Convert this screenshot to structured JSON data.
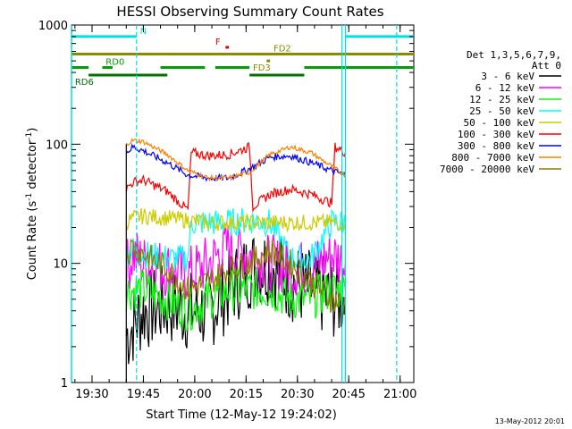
{
  "chart_data": {
    "type": "line",
    "title": "HESSI Observing Summary Count Rates",
    "xlabel": "Start Time (12-May-12 19:24:02)",
    "ylabel": "Count Rate (s",
    "ylabel_sup": "-1",
    "ylabel_mid": " detector",
    "ylabel_end": ")",
    "ylog": true,
    "ylim": [
      1,
      1000
    ],
    "xlim": [
      "19:24",
      "21:04"
    ],
    "x_ticks": [
      "19:30",
      "19:45",
      "20:00",
      "20:15",
      "20:30",
      "20:45",
      "21:00"
    ],
    "y_ticks": [
      "1",
      "10",
      "100",
      "1000"
    ],
    "legend_header_1": "Det 1,3,5,6,7,9,",
    "legend_header_2": "Att 0",
    "timestamp": "13-May-2012 20:01",
    "series": [
      {
        "name": "3 - 6 keV",
        "color": "#000000",
        "x": [
          "19:40",
          "19:42",
          "19:45",
          "19:52",
          "19:58",
          "20:04",
          "20:10",
          "20:16",
          "20:22",
          "20:28",
          "20:34",
          "20:40",
          "20:44"
        ],
        "values": [
          2.5,
          3,
          4,
          4.5,
          4,
          4,
          6,
          9,
          10,
          7,
          6,
          5,
          5
        ]
      },
      {
        "name": "6 - 12 keV",
        "color": "#ff00ff",
        "x": [
          "19:40",
          "19:42",
          "19:45",
          "19:52",
          "19:58",
          "20:04",
          "20:10",
          "20:16",
          "20:22",
          "20:28",
          "20:34",
          "20:40",
          "20:44"
        ],
        "values": [
          9,
          12,
          10,
          9,
          8,
          10,
          14,
          12,
          10,
          9,
          9,
          12,
          10
        ]
      },
      {
        "name": "12 - 25 keV",
        "color": "#00ff00",
        "x": [
          "19:40",
          "19:42",
          "19:45",
          "19:52",
          "19:58",
          "20:04",
          "20:10",
          "20:16",
          "20:22",
          "20:28",
          "20:34",
          "20:40",
          "20:44"
        ],
        "values": [
          6,
          6,
          6,
          5,
          4,
          5,
          6,
          6,
          6,
          5,
          5,
          6,
          6
        ]
      },
      {
        "name": "25 - 50 keV",
        "color": "#00ffff",
        "x": [
          "19:40",
          "19:42",
          "19:45",
          "19:52",
          "19:58",
          "19:59",
          "20:04",
          "20:10",
          "20:16",
          "20:22",
          "20:28",
          "20:34",
          "20:40",
          "20:44"
        ],
        "values": [
          12,
          13,
          12,
          11,
          11,
          22,
          22,
          22,
          23,
          22,
          11,
          11,
          22,
          22
        ]
      },
      {
        "name": "50 - 100 keV",
        "color": "#cccc00",
        "x": [
          "19:40",
          "19:42",
          "19:45",
          "19:52",
          "19:58",
          "20:04",
          "20:10",
          "20:16",
          "20:22",
          "20:28",
          "20:34",
          "20:40",
          "20:44"
        ],
        "values": [
          22,
          24,
          25,
          24,
          23,
          22,
          22,
          22,
          22,
          22,
          22,
          22,
          22
        ]
      },
      {
        "name": "100 - 300 keV",
        "color": "#ff0000",
        "x": [
          "19:40",
          "19:42",
          "19:45",
          "19:52",
          "19:58",
          "19:59",
          "20:04",
          "20:10",
          "20:16",
          "20:17",
          "20:22",
          "20:28",
          "20:34",
          "20:40",
          "20:41",
          "20:44"
        ],
        "values": [
          42,
          48,
          50,
          40,
          28,
          85,
          80,
          82,
          95,
          30,
          38,
          42,
          38,
          32,
          95,
          85
        ]
      },
      {
        "name": "300 - 800 keV",
        "color": "#0000ff",
        "x": [
          "19:40",
          "19:42",
          "19:45",
          "19:52",
          "19:58",
          "20:04",
          "20:10",
          "20:16",
          "20:22",
          "20:28",
          "20:34",
          "20:40",
          "20:44"
        ],
        "values": [
          85,
          95,
          88,
          70,
          55,
          52,
          52,
          62,
          78,
          80,
          70,
          60,
          55
        ]
      },
      {
        "name": "800 - 7000 keV",
        "color": "#ff8000",
        "x": [
          "19:40",
          "19:42",
          "19:45",
          "19:52",
          "19:58",
          "20:04",
          "20:10",
          "20:16",
          "20:22",
          "20:28",
          "20:34",
          "20:40",
          "20:44"
        ],
        "values": [
          100,
          108,
          105,
          82,
          60,
          52,
          52,
          58,
          82,
          95,
          85,
          65,
          55
        ]
      },
      {
        "name": "7000 - 20000 keV",
        "color": "#8b7a00",
        "x": [
          "19:40",
          "19:42",
          "19:45",
          "19:52",
          "19:58",
          "20:04",
          "20:10",
          "20:16",
          "20:22",
          "20:28",
          "20:34",
          "20:40",
          "20:44"
        ],
        "values": [
          12,
          14,
          12,
          9,
          6,
          7,
          9,
          10,
          13,
          10,
          7,
          5,
          4.5
        ]
      }
    ],
    "flag_bars": [
      {
        "label": "N",
        "color": "#00e0e0",
        "level": 800,
        "segments": [
          [
            "19:24",
            "19:43"
          ],
          [
            "20:44",
            "21:04"
          ]
        ]
      },
      {
        "label": "F",
        "color": "#e00000",
        "level": 650,
        "segments": [
          [
            "20:09",
            "20:10"
          ]
        ]
      },
      {
        "label": "FD2",
        "color": "#8b8b00",
        "level": 570,
        "segments": [
          [
            "19:24",
            "21:04"
          ]
        ]
      },
      {
        "label": "FD3",
        "color": "#8b8b00",
        "level": 500,
        "segments": [
          [
            "20:21",
            "20:22"
          ]
        ]
      },
      {
        "label": "RD0",
        "color": "#00a000",
        "level": 440,
        "segments": [
          [
            "19:24",
            "19:29"
          ],
          [
            "19:33",
            "19:36"
          ],
          [
            "19:50",
            "20:03"
          ],
          [
            "20:06",
            "20:16"
          ],
          [
            "20:32",
            "21:04"
          ]
        ]
      },
      {
        "label": "RD6",
        "color": "#007000",
        "level": 380,
        "segments": [
          [
            "19:29",
            "19:52"
          ],
          [
            "20:16",
            "20:32"
          ]
        ]
      }
    ],
    "v_lines": [
      {
        "x": "19:43",
        "color": "#00e0e0",
        "style": "dashed"
      },
      {
        "x": "20:44",
        "color": "#00e0e0",
        "style": "solid"
      },
      {
        "x": "20:44",
        "color": "#00e0e0",
        "style": "solid"
      },
      {
        "x": "20:59",
        "color": "#00e0e0",
        "style": "dashed"
      }
    ]
  }
}
